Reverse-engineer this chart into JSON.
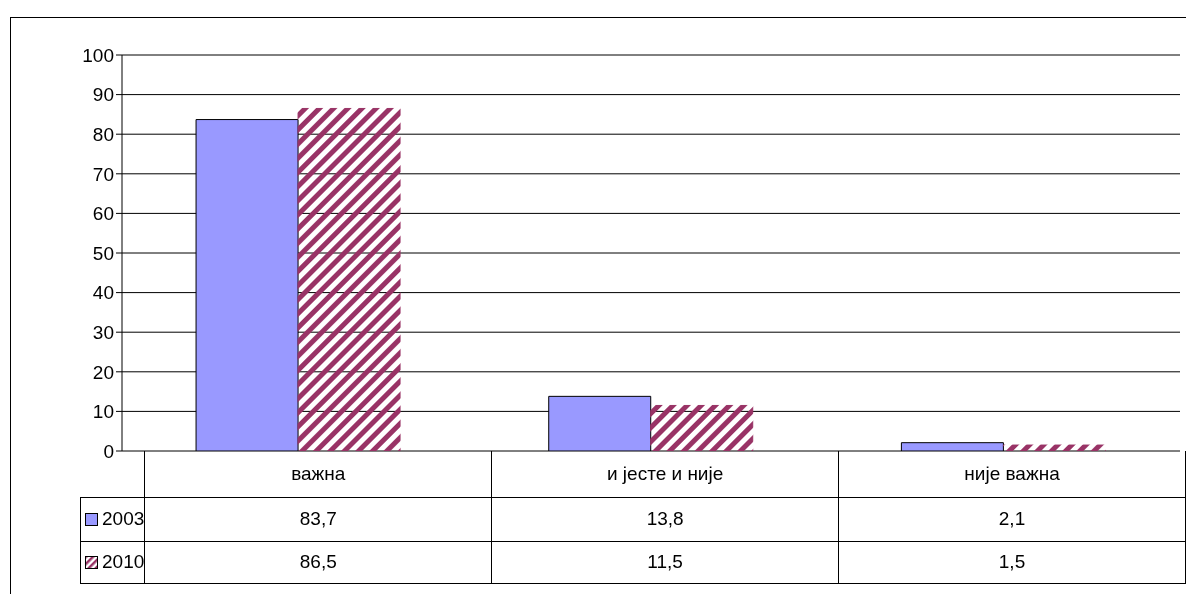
{
  "chart_data": {
    "type": "bar",
    "categories": [
      "важна",
      "и јесте и није",
      "није важна"
    ],
    "series": [
      {
        "name": "2003",
        "color": "#9999ff",
        "values": [
          83.7,
          13.8,
          2.1
        ],
        "value_labels": [
          "83,7",
          "13,8",
          "2,1"
        ]
      },
      {
        "name": "2010",
        "color": "#993366",
        "values": [
          86.5,
          11.5,
          1.5
        ],
        "value_labels": [
          "86,5",
          "11,5",
          "1,5"
        ]
      }
    ],
    "ylim": [
      0,
      100
    ],
    "yticks": [
      0,
      10,
      20,
      30,
      40,
      50,
      60,
      70,
      80,
      90,
      100
    ],
    "grid": "y",
    "legend": "bottom"
  }
}
